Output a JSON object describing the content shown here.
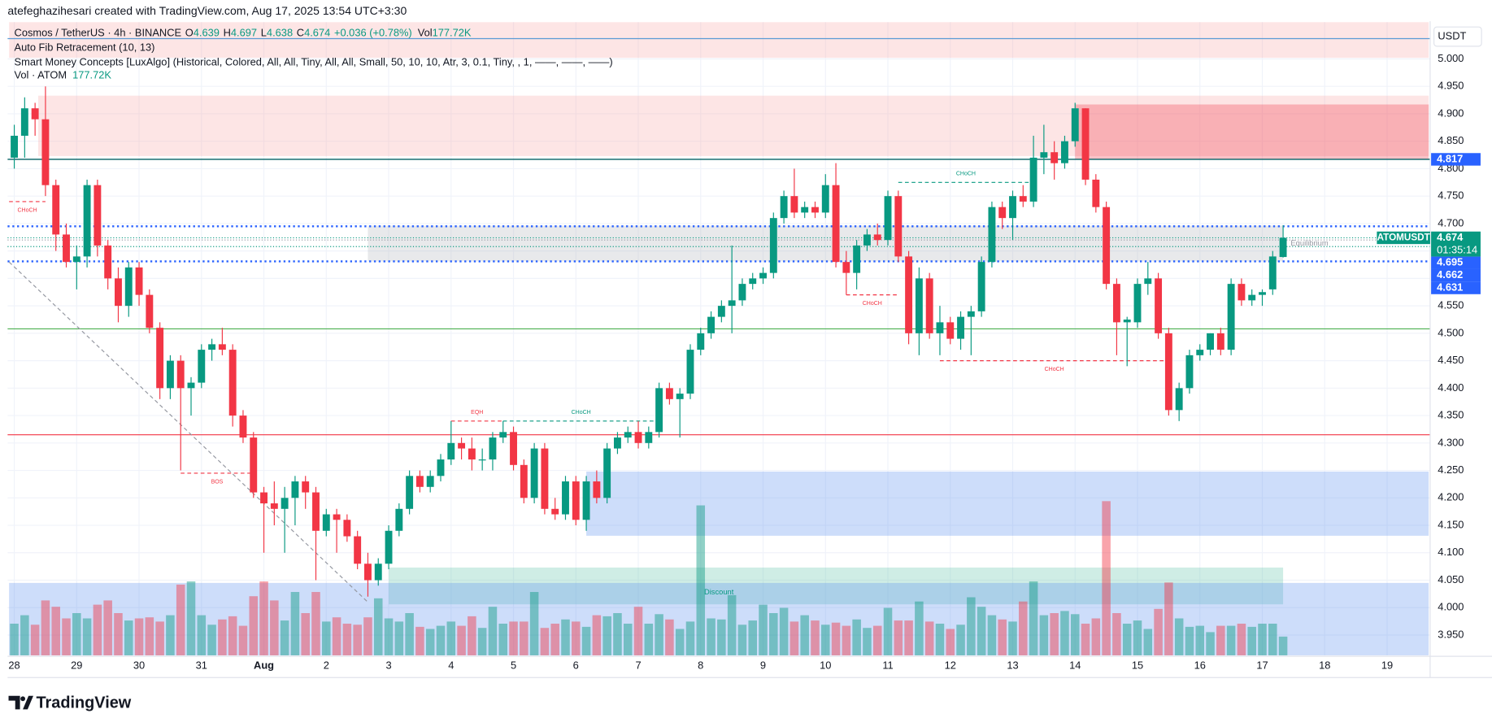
{
  "chart_data": {
    "type": "candlestick",
    "caption": "atefeghazihesari created with TradingView.com, Aug 17, 2025 13:54 UTC+3:30",
    "legend": {
      "symbol": "Cosmos / TetherUS · 4h · BINANCE",
      "fields": [
        {
          "key": "O",
          "value": "4.639"
        },
        {
          "key": "H",
          "value": "4.697"
        },
        {
          "key": "L",
          "value": "4.638"
        },
        {
          "key": "C",
          "value": "4.674"
        }
      ],
      "change": "+0.036 (+0.78%)",
      "vol_key": "Vol",
      "vol": "177.72K"
    },
    "indicators": [
      "Auto Fib Retracement (10, 13)",
      "Smart Money Concepts [LuxAlgo] (Historical, Colored, All, All, Tiny, All, All, Small, 50, 10, 10, Atr, 3, 0.1, Tiny, , 1, ——, ——, ——)"
    ],
    "volume_legend": {
      "name": "Vol · ATOM",
      "value": "177.72K"
    },
    "currency": "USDT",
    "brand": "TradingView",
    "up_color": "#089981",
    "down_color": "#f23645",
    "ylim": [
      3.913,
      5.067
    ],
    "yticks": [
      {
        "value": 5.0,
        "label": "5.000"
      },
      {
        "value": 4.95,
        "label": "4.950"
      },
      {
        "value": 4.9,
        "label": "4.900"
      },
      {
        "value": 4.85,
        "label": "4.850"
      },
      {
        "value": 4.8,
        "label": "4.800"
      },
      {
        "value": 4.75,
        "label": "4.750"
      },
      {
        "value": 4.7,
        "label": "4.700"
      },
      {
        "value": 4.65,
        "label": "4.650"
      },
      {
        "value": 4.6,
        "label": "4.600"
      },
      {
        "value": 4.55,
        "label": "4.550"
      },
      {
        "value": 4.5,
        "label": "4.500"
      },
      {
        "value": 4.45,
        "label": "4.450"
      },
      {
        "value": 4.4,
        "label": "4.400"
      },
      {
        "value": 4.35,
        "label": "4.350"
      },
      {
        "value": 4.3,
        "label": "4.300"
      },
      {
        "value": 4.25,
        "label": "4.250"
      },
      {
        "value": 4.2,
        "label": "4.200"
      },
      {
        "value": 4.15,
        "label": "4.150"
      },
      {
        "value": 4.1,
        "label": "4.100"
      },
      {
        "value": 4.05,
        "label": "4.050"
      },
      {
        "value": 4.0,
        "label": "4.000"
      },
      {
        "value": 3.95,
        "label": "3.950"
      }
    ],
    "xticks": [
      {
        "value": 0,
        "label": "28"
      },
      {
        "value": 6,
        "label": "29"
      },
      {
        "value": 12,
        "label": "30"
      },
      {
        "value": 18,
        "label": "31"
      },
      {
        "value": 24,
        "label": "Aug"
      },
      {
        "value": 30,
        "label": "2"
      },
      {
        "value": 36,
        "label": "3"
      },
      {
        "value": 42,
        "label": "4"
      },
      {
        "value": 48,
        "label": "5"
      },
      {
        "value": 54,
        "label": "6"
      },
      {
        "value": 60,
        "label": "7"
      },
      {
        "value": 66,
        "label": "8"
      },
      {
        "value": 72,
        "label": "9"
      },
      {
        "value": 78,
        "label": "10"
      },
      {
        "value": 84,
        "label": "11"
      },
      {
        "value": 90,
        "label": "12"
      },
      {
        "value": 96,
        "label": "13"
      },
      {
        "value": 102,
        "label": "14"
      },
      {
        "value": 108,
        "label": "15"
      },
      {
        "value": 114,
        "label": "16"
      },
      {
        "value": 120,
        "label": "17"
      },
      {
        "value": 126,
        "label": "18"
      },
      {
        "value": 132,
        "label": "19"
      }
    ],
    "grid": true,
    "open": [
      4.82,
      4.86,
      4.91,
      4.89,
      4.77,
      4.68,
      4.63,
      4.64,
      4.77,
      4.66,
      4.6,
      4.55,
      4.62,
      4.57,
      4.51,
      4.4,
      4.45,
      4.4,
      4.41,
      4.47,
      4.48,
      4.47,
      4.35,
      4.31,
      4.21,
      4.19,
      4.18,
      4.2,
      4.23,
      4.21,
      4.14,
      4.17,
      4.16,
      4.13,
      4.08,
      4.05,
      4.08,
      4.14,
      4.18,
      4.24,
      4.22,
      4.24,
      4.27,
      4.3,
      4.29,
      4.27,
      4.27,
      4.31,
      4.32,
      4.26,
      4.2,
      4.29,
      4.18,
      4.17,
      4.23,
      4.16,
      4.23,
      4.2,
      4.29,
      4.31,
      4.32,
      4.3,
      4.32,
      4.4,
      4.38,
      4.39,
      4.47,
      4.5,
      4.53,
      4.55,
      4.56,
      4.59,
      4.6,
      4.61,
      4.71,
      4.75,
      4.72,
      4.73,
      4.72,
      4.77,
      4.63,
      4.61,
      4.66,
      4.68,
      4.67,
      4.75,
      4.64,
      4.5,
      4.6,
      4.5,
      4.52,
      4.49,
      4.53,
      4.54,
      4.63,
      4.73,
      4.71,
      4.75,
      4.74,
      4.82,
      4.83,
      4.81,
      4.85,
      4.91,
      4.78,
      4.73,
      4.59,
      4.52,
      4.52,
      4.59,
      4.6,
      4.5,
      4.36,
      4.4,
      4.46,
      4.47,
      4.5,
      4.47,
      4.59,
      4.56,
      4.57,
      4.58,
      4.639
    ],
    "high": [
      4.88,
      4.93,
      4.92,
      4.95,
      4.78,
      4.7,
      4.66,
      4.78,
      4.78,
      4.67,
      4.62,
      4.63,
      4.63,
      4.58,
      4.52,
      4.46,
      4.46,
      4.42,
      4.48,
      4.49,
      4.51,
      4.48,
      4.36,
      4.32,
      4.22,
      4.23,
      4.22,
      4.24,
      4.24,
      4.22,
      4.18,
      4.18,
      4.17,
      4.14,
      4.1,
      4.09,
      4.15,
      4.19,
      4.25,
      4.25,
      4.25,
      4.28,
      4.34,
      4.31,
      4.31,
      4.29,
      4.32,
      4.34,
      4.33,
      4.27,
      4.3,
      4.3,
      4.2,
      4.24,
      4.24,
      4.24,
      4.25,
      4.3,
      4.32,
      4.33,
      4.34,
      4.33,
      4.41,
      4.41,
      4.4,
      4.48,
      4.51,
      4.54,
      4.56,
      4.66,
      4.6,
      4.61,
      4.62,
      4.72,
      4.76,
      4.8,
      4.74,
      4.74,
      4.79,
      4.81,
      4.65,
      4.67,
      4.69,
      4.7,
      4.76,
      4.76,
      4.65,
      4.62,
      4.61,
      4.55,
      4.53,
      4.54,
      4.55,
      4.64,
      4.74,
      4.74,
      4.76,
      4.77,
      4.86,
      4.88,
      4.85,
      4.86,
      4.92,
      4.91,
      4.79,
      4.74,
      4.6,
      4.53,
      4.6,
      4.63,
      4.61,
      4.51,
      4.41,
      4.47,
      4.48,
      4.5,
      4.51,
      4.6,
      4.6,
      4.58,
      4.58,
      4.65,
      4.697
    ],
    "low": [
      4.8,
      4.82,
      4.86,
      4.75,
      4.65,
      4.62,
      4.58,
      4.62,
      4.64,
      4.58,
      4.52,
      4.53,
      4.55,
      4.5,
      4.38,
      4.38,
      4.25,
      4.35,
      4.4,
      4.45,
      4.46,
      4.33,
      4.3,
      4.2,
      4.1,
      4.15,
      4.1,
      4.15,
      4.18,
      4.05,
      4.13,
      4.1,
      4.12,
      4.07,
      4.02,
      4.04,
      4.07,
      4.13,
      4.17,
      4.21,
      4.21,
      4.23,
      4.26,
      4.27,
      4.25,
      4.25,
      4.25,
      4.3,
      4.25,
      4.19,
      4.19,
      4.17,
      4.16,
      4.16,
      4.15,
      4.14,
      4.19,
      4.19,
      4.28,
      4.3,
      4.29,
      4.29,
      4.31,
      4.37,
      4.31,
      4.38,
      4.46,
      4.49,
      4.52,
      4.5,
      4.55,
      4.58,
      4.59,
      4.6,
      4.7,
      4.71,
      4.71,
      4.71,
      4.71,
      4.62,
      4.57,
      4.58,
      4.65,
      4.66,
      4.66,
      4.63,
      4.48,
      4.46,
      4.49,
      4.46,
      4.48,
      4.47,
      4.46,
      4.53,
      4.62,
      4.69,
      4.67,
      4.73,
      4.73,
      4.79,
      4.78,
      4.8,
      4.84,
      4.77,
      4.72,
      4.58,
      4.46,
      4.44,
      4.51,
      4.57,
      4.49,
      4.35,
      4.34,
      4.39,
      4.45,
      4.46,
      4.46,
      4.46,
      4.55,
      4.55,
      4.55,
      4.57,
      4.638
    ],
    "close": [
      4.86,
      4.91,
      4.89,
      4.77,
      4.68,
      4.63,
      4.64,
      4.77,
      4.66,
      4.6,
      4.55,
      4.62,
      4.57,
      4.51,
      4.4,
      4.45,
      4.4,
      4.41,
      4.47,
      4.48,
      4.47,
      4.35,
      4.31,
      4.21,
      4.19,
      4.18,
      4.2,
      4.23,
      4.21,
      4.14,
      4.17,
      4.16,
      4.13,
      4.08,
      4.05,
      4.08,
      4.14,
      4.18,
      4.24,
      4.22,
      4.24,
      4.27,
      4.3,
      4.29,
      4.27,
      4.27,
      4.31,
      4.32,
      4.26,
      4.2,
      4.29,
      4.18,
      4.17,
      4.23,
      4.16,
      4.23,
      4.2,
      4.29,
      4.31,
      4.32,
      4.3,
      4.32,
      4.4,
      4.38,
      4.39,
      4.47,
      4.5,
      4.53,
      4.55,
      4.56,
      4.59,
      4.6,
      4.61,
      4.71,
      4.75,
      4.72,
      4.73,
      4.72,
      4.77,
      4.63,
      4.61,
      4.66,
      4.68,
      4.67,
      4.75,
      4.64,
      4.5,
      4.6,
      4.5,
      4.52,
      4.49,
      4.53,
      4.54,
      4.63,
      4.73,
      4.71,
      4.75,
      4.74,
      4.82,
      4.83,
      4.81,
      4.85,
      4.91,
      4.78,
      4.73,
      4.59,
      4.52,
      4.525,
      4.59,
      4.6,
      4.5,
      4.36,
      4.4,
      4.46,
      4.47,
      4.5,
      4.47,
      4.59,
      4.56,
      4.57,
      4.575,
      4.64,
      4.674
    ],
    "volume": [
      300,
      380,
      290,
      520,
      460,
      350,
      400,
      350,
      480,
      520,
      400,
      330,
      350,
      360,
      320,
      380,
      670,
      700,
      380,
      290,
      340,
      370,
      280,
      560,
      700,
      520,
      330,
      600,
      400,
      600,
      320,
      360,
      300,
      290,
      360,
      540,
      350,
      320,
      400,
      270,
      250,
      280,
      320,
      280,
      370,
      260,
      460,
      300,
      320,
      320,
      600,
      260,
      300,
      340,
      320,
      270,
      380,
      370,
      400,
      300,
      460,
      300,
      390,
      340,
      250,
      320,
      1420,
      350,
      340,
      570,
      290,
      330,
      480,
      400,
      450,
      320,
      380,
      330,
      290,
      310,
      280,
      340,
      260,
      280,
      450,
      330,
      330,
      510,
      320,
      300,
      250,
      290,
      550,
      460,
      380,
      340,
      320,
      510,
      700,
      380,
      400,
      420,
      390,
      300,
      350,
      1460,
      400,
      300,
      330,
      250,
      440,
      690,
      350,
      270,
      280,
      220,
      280,
      280,
      300,
      270,
      300,
      300,
      177.72
    ],
    "zones": [
      {
        "top": 5.067,
        "bottom": 5.002,
        "from": -0.5,
        "to": 136,
        "color": "#f7a9a8"
      },
      {
        "top": 4.933,
        "bottom": 4.823,
        "from": 2.3,
        "to": 136,
        "color": "#f7a9a8"
      },
      {
        "top": 4.917,
        "bottom": 4.817,
        "from": 102,
        "to": 136,
        "color": "#f23645"
      },
      {
        "top": 4.696,
        "bottom": 4.631,
        "from": 34,
        "to": 122,
        "color": "#b2b5be",
        "label": "Equilibrium",
        "label_at": "right"
      },
      {
        "top": 4.248,
        "bottom": 4.131,
        "from": 55,
        "to": 136,
        "color": "#5b8def"
      },
      {
        "top": 4.073,
        "bottom": 4.006,
        "from": 36,
        "to": 122,
        "color": "#5fc4a8"
      },
      {
        "top": 4.045,
        "bottom": 3.913,
        "from": -0.5,
        "to": 136,
        "color": "#5b8def",
        "label": "Discount",
        "label_at": "center"
      }
    ],
    "lines": [
      {
        "price": 5.037,
        "color": "#5b9bd5",
        "dash": false
      },
      {
        "price": 4.508,
        "color": "#4caf50",
        "dash": false
      },
      {
        "price": 4.315,
        "color": "#f23645",
        "dash": false
      },
      {
        "price": 4.67,
        "color": "#9598a1",
        "dash": true
      },
      {
        "price": 4.658,
        "color": "#089981",
        "dash": true
      }
    ],
    "structures": [
      {
        "label": "CHoCH",
        "from": -0.5,
        "to": 3,
        "price": 4.74,
        "color": "#f23645",
        "side": "below"
      },
      {
        "label": "BOS",
        "from": 16,
        "to": 23,
        "price": 4.245,
        "color": "#f23645",
        "side": "below"
      },
      {
        "label": "EQH",
        "from": 42,
        "to": 47,
        "price": 4.34,
        "color": "#f23645",
        "side": "above"
      },
      {
        "label": "CHoCH",
        "from": 47,
        "to": 62,
        "price": 4.34,
        "color": "#089981",
        "side": "above"
      },
      {
        "label": "CHoCH",
        "from": 80,
        "to": 85,
        "price": 4.57,
        "color": "#f23645",
        "side": "below"
      },
      {
        "label": "CHoCH",
        "from": 85,
        "to": 98,
        "price": 4.775,
        "color": "#089981",
        "side": "above"
      },
      {
        "label": "CHoCH",
        "from": 89,
        "to": 111,
        "price": 4.45,
        "color": "#f23645",
        "side": "below"
      }
    ],
    "trendline": {
      "from": [
        -0.5,
        4.63
      ],
      "to": [
        34,
        4.01
      ],
      "color": "#9598a1"
    },
    "levels": [
      {
        "value": 4.817,
        "color": "#2962ff",
        "line": "#006064",
        "dash": false
      },
      {
        "value": 4.695,
        "color": "#2962ff",
        "line": "#2962ff",
        "dash": true
      },
      {
        "value": 4.662,
        "color": "#2962ff"
      },
      {
        "value": 4.631,
        "color": "#2962ff",
        "line": "#2962ff",
        "dash": true
      }
    ],
    "last_price": {
      "symbol": "ATOMUSDT",
      "value": 4.674,
      "countdown": "01:35:14",
      "color": "#089981"
    }
  }
}
